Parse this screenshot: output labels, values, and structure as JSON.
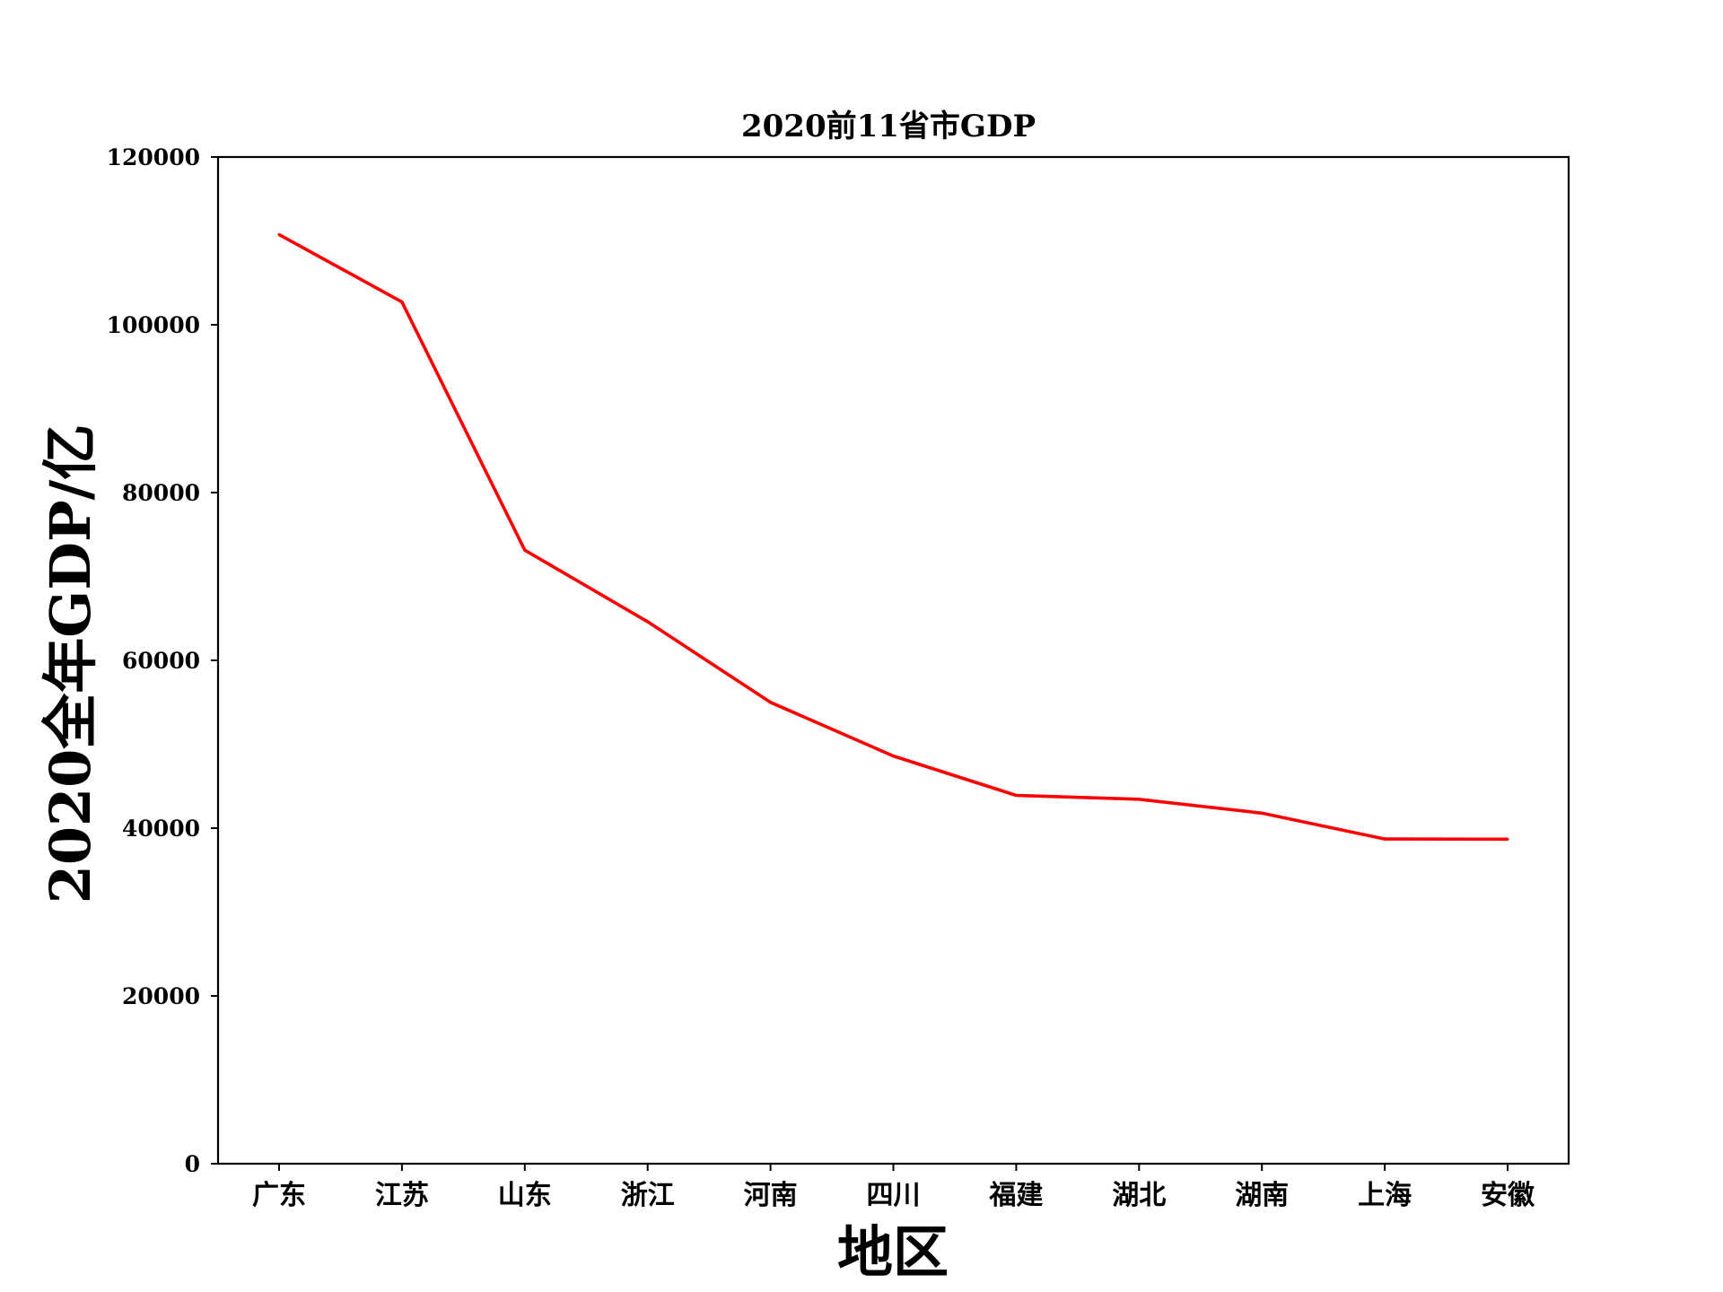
{
  "chart_data": {
    "type": "line",
    "title": "2020前11省市GDP",
    "xlabel": "地区",
    "ylabel": "2020全年GDP/亿",
    "categories": [
      "广东",
      "江苏",
      "山东",
      "浙江",
      "河南",
      "四川",
      "福建",
      "湖北",
      "湖南",
      "上海",
      "安徽"
    ],
    "series": [
      {
        "values": [
          110760,
          102719,
          73129,
          64613,
          54997,
          48599,
          43904,
          43443,
          41781,
          38701,
          38681
        ],
        "color": "#ff0000"
      }
    ],
    "ylim": [
      0,
      120000
    ],
    "yticks": [
      "0",
      "20000",
      "40000",
      "60000",
      "80000",
      "100000",
      "120000"
    ],
    "grid": false,
    "legend": "none"
  }
}
